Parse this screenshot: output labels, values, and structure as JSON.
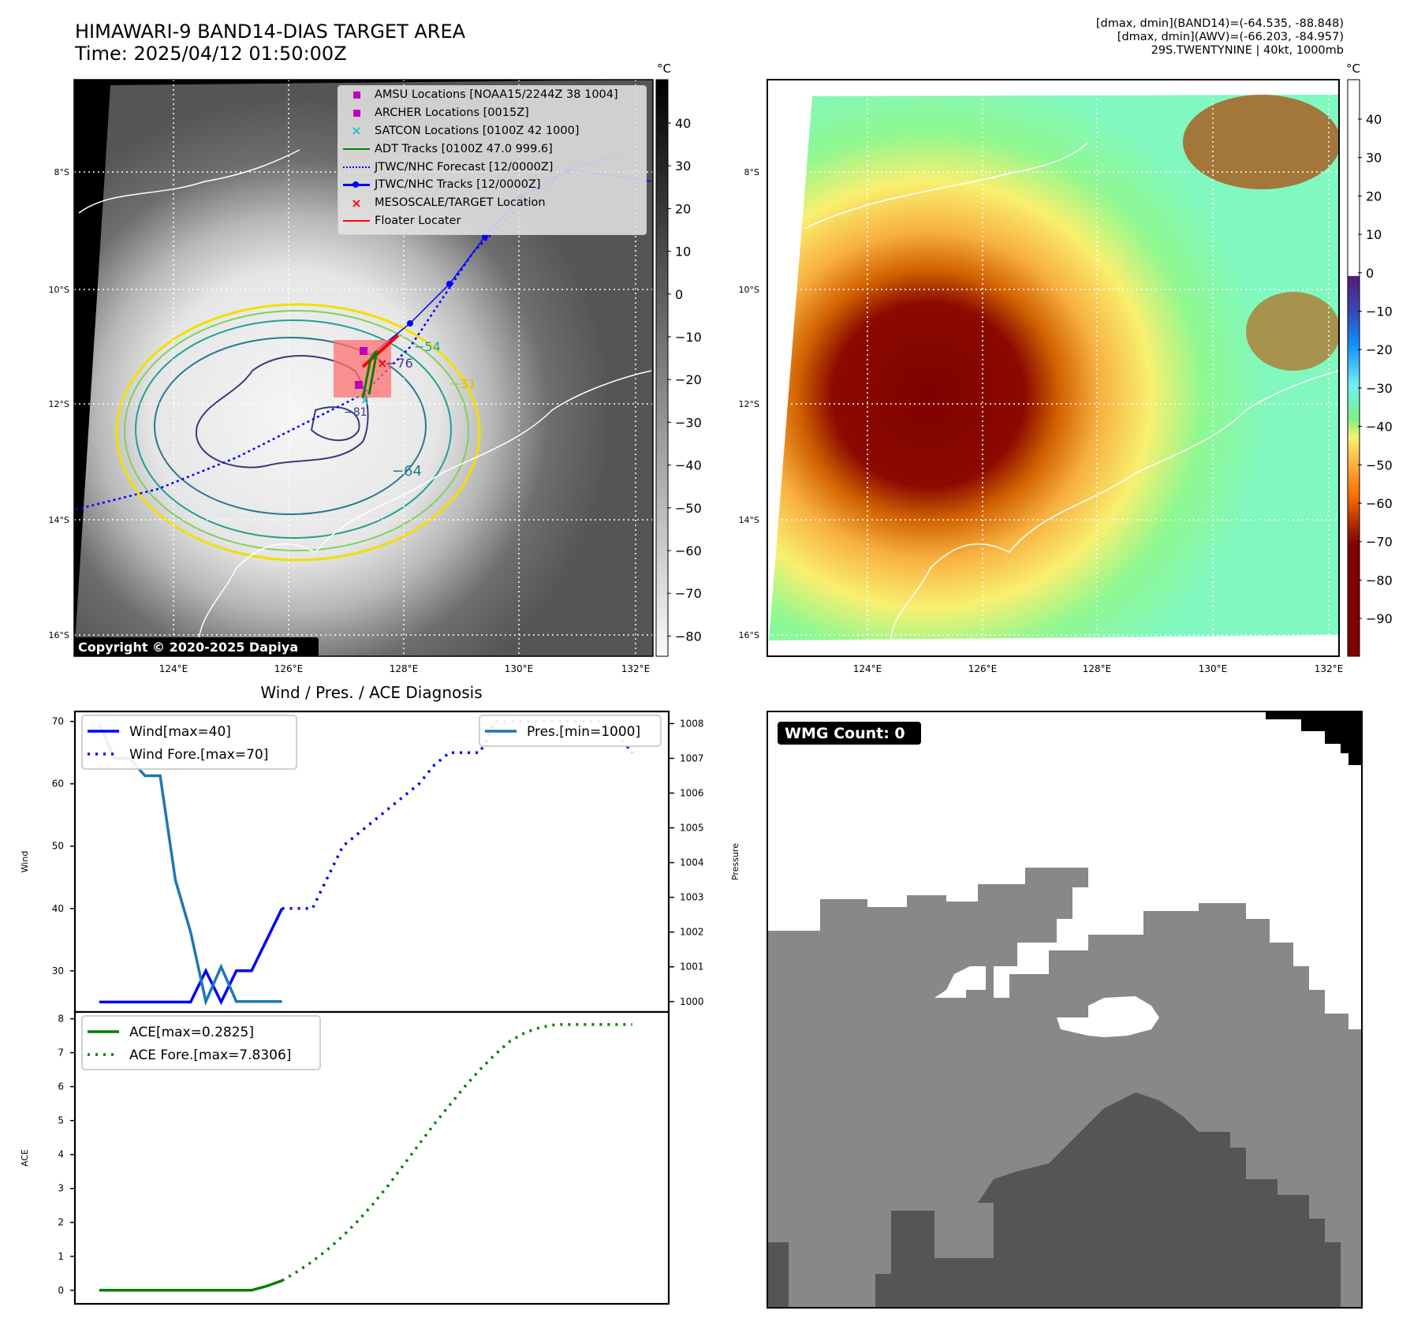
{
  "header": {
    "title": "HIMAWARI-9 BAND14-DIAS TARGET AREA",
    "time": "Time: 2025/04/12 01:50:00Z",
    "info_lines": [
      "[dmax, dmin](BAND14)=(-64.535, -88.848)",
      "[dmax, dmin](AWV)=(-66.203, -84.957)",
      "29S.TWENTYNINE | 40kt, 1000mb"
    ]
  },
  "map1": {
    "lat_labels": [
      "8°S",
      "10°S",
      "12°S",
      "14°S",
      "16°S"
    ],
    "lon_labels": [
      "124°E",
      "126°E",
      "128°E",
      "130°E",
      "132°E"
    ],
    "copyright": "Copyright © 2020-2025 Dapiya",
    "colorbar_unit": "°C",
    "colorbar_ticks": [
      "40",
      "30",
      "20",
      "10",
      "0",
      "−10",
      "−20",
      "−30",
      "−40",
      "−50",
      "−60",
      "−70",
      "−80"
    ],
    "contour_labels": [
      "−64",
      "−76",
      "−54",
      "−31",
      "−81"
    ],
    "legend": [
      {
        "label": "AMSU Locations [NOAA15/2244Z 38 1004]",
        "symbol": "square",
        "color": "#c000c0"
      },
      {
        "label": "ARCHER Locations [0015Z]",
        "symbol": "square",
        "color": "#c000c0"
      },
      {
        "label": "SATCON Locations [0100Z 42 1000]",
        "symbol": "x",
        "color": "#20c0c0"
      },
      {
        "label": "ADT Tracks [0100Z 47.0 999.6]",
        "symbol": "line",
        "color": "#008000"
      },
      {
        "label": "JTWC/NHC Forecast [12/0000Z]",
        "symbol": "dotted",
        "color": "#0000ff"
      },
      {
        "label": "JTWC/NHC Tracks [12/0000Z]",
        "symbol": "line-dot",
        "color": "#0000ff"
      },
      {
        "label": "MESOSCALE/TARGET Location",
        "symbol": "x",
        "color": "#ff0000"
      },
      {
        "label": "Floater Locater",
        "symbol": "line",
        "color": "#ff0000"
      }
    ]
  },
  "map2": {
    "lat_labels": [
      "8°S",
      "10°S",
      "12°S",
      "14°S",
      "16°S"
    ],
    "lon_labels": [
      "124°E",
      "126°E",
      "128°E",
      "130°E",
      "132°E"
    ],
    "colorbar_unit": "°C",
    "colorbar_ticks": [
      "40",
      "30",
      "20",
      "10",
      "0",
      "−10",
      "−20",
      "−30",
      "−40",
      "−50",
      "−60",
      "−70",
      "−80",
      "−90"
    ]
  },
  "wmg": {
    "badge": "WMG Count: 0"
  },
  "chart_data": [
    {
      "type": "line",
      "title": "Wind / Pres. / ACE Diagnosis",
      "ylabel": "Wind",
      "y2label": "Pressure",
      "ylim": [
        23.4,
        71.6
      ],
      "y2lim": [
        999.7,
        1008.35
      ],
      "yticks": [
        "30",
        "40",
        "50",
        "60",
        "70"
      ],
      "y2ticks": [
        "1000",
        "1001",
        "1002",
        "1003",
        "1004",
        "1005",
        "1006",
        "1007",
        "1008"
      ],
      "series": [
        {
          "name": "Wind[max=40]",
          "style": "solid",
          "color": "#0000ff",
          "axis": "left",
          "x": [
            0,
            1,
            2,
            3,
            4,
            5,
            6,
            7,
            8,
            9,
            10,
            11,
            12
          ],
          "values": [
            25,
            25,
            25,
            25,
            25,
            25,
            25,
            30,
            25,
            30,
            30,
            35,
            40
          ]
        },
        {
          "name": "Wind Fore.[max=70]",
          "style": "dotted",
          "color": "#0000ff",
          "axis": "left",
          "x": [
            12,
            13,
            14,
            15,
            16,
            17,
            18,
            19,
            20,
            21,
            22,
            23,
            24,
            25,
            26,
            27,
            28,
            29,
            30,
            31,
            32,
            33,
            34,
            35
          ],
          "values": [
            40,
            40,
            40,
            45,
            50,
            52,
            54,
            56,
            58,
            60,
            63,
            65,
            65,
            65,
            70,
            70,
            70,
            70,
            70,
            70,
            70,
            70,
            68,
            65
          ]
        },
        {
          "name": "Pres.[min=1000]",
          "style": "solid",
          "color": "#1f77b4",
          "axis": "right",
          "x": [
            0,
            1,
            2,
            3,
            4,
            5,
            6,
            7,
            8,
            9,
            10,
            11,
            12
          ],
          "values": [
            1008,
            1007,
            1007,
            1006.5,
            1006.5,
            1003.5,
            1002,
            1000,
            1001,
            1000,
            1000,
            1000,
            1000
          ]
        }
      ]
    },
    {
      "type": "line",
      "ylabel": "ACE",
      "ylim": [
        -0.4,
        8.2
      ],
      "yticks": [
        "0",
        "1",
        "2",
        "3",
        "4",
        "5",
        "6",
        "7",
        "8"
      ],
      "series": [
        {
          "name": "ACE[max=0.2825]",
          "style": "solid",
          "color": "#008000",
          "x": [
            0,
            1,
            2,
            3,
            4,
            5,
            6,
            7,
            8,
            9,
            10,
            11,
            12
          ],
          "values": [
            0,
            0,
            0,
            0,
            0,
            0,
            0,
            0,
            0,
            0,
            0,
            0.1225,
            0.2825
          ]
        },
        {
          "name": "ACE Fore.[max=7.8306]",
          "style": "dotted",
          "color": "#008000",
          "x": [
            12,
            13,
            14,
            15,
            16,
            17,
            18,
            19,
            20,
            21,
            22,
            23,
            24,
            25,
            26,
            27,
            28,
            29,
            30,
            31,
            32,
            33,
            34,
            35
          ],
          "values": [
            0.2825,
            0.55,
            0.85,
            1.2,
            1.6,
            2.05,
            2.55,
            3.1,
            3.7,
            4.3,
            4.9,
            5.45,
            6.0,
            6.5,
            6.95,
            7.35,
            7.6,
            7.75,
            7.8306,
            7.8306,
            7.8306,
            7.8306,
            7.8306,
            7.8306
          ]
        }
      ]
    }
  ]
}
